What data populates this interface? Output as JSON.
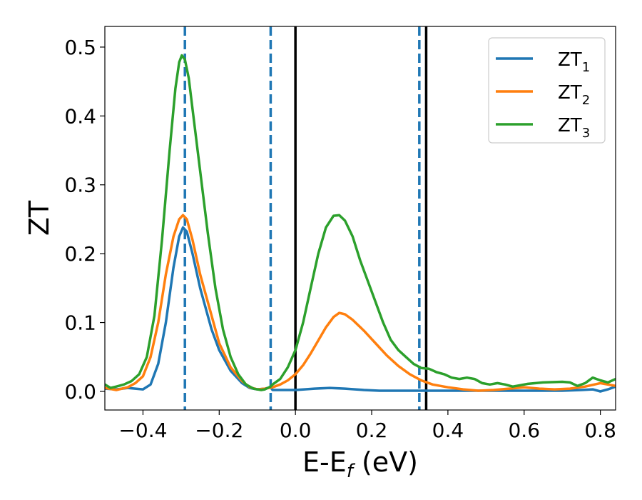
{
  "chart_data": {
    "type": "line",
    "xlabel_main": "E-E",
    "xlabel_sub": "f",
    "xlabel_unit": " (eV)",
    "ylabel": "ZT",
    "xlim": [
      -0.5,
      0.84
    ],
    "ylim": [
      -0.027,
      0.53
    ],
    "xticks": [
      -0.4,
      -0.2,
      0.0,
      0.2,
      0.4,
      0.6,
      0.8
    ],
    "xtick_labels": [
      "−0.4",
      "−0.2",
      "0.0",
      "0.2",
      "0.4",
      "0.6",
      "0.8"
    ],
    "yticks": [
      0.0,
      0.1,
      0.2,
      0.3,
      0.4,
      0.5
    ],
    "ytick_labels": [
      "0.0",
      "0.1",
      "0.2",
      "0.3",
      "0.4",
      "0.5"
    ],
    "grid": false,
    "legend_position": "top-right",
    "series": [
      {
        "name": "ZT",
        "subscript": "1",
        "color": "#1f77b4",
        "points": [
          [
            -0.5,
            0.004
          ],
          [
            -0.47,
            0.003
          ],
          [
            -0.44,
            0.005
          ],
          [
            -0.42,
            0.004
          ],
          [
            -0.4,
            0.003
          ],
          [
            -0.38,
            0.01
          ],
          [
            -0.36,
            0.04
          ],
          [
            -0.34,
            0.1
          ],
          [
            -0.32,
            0.18
          ],
          [
            -0.305,
            0.225
          ],
          [
            -0.295,
            0.238
          ],
          [
            -0.285,
            0.232
          ],
          [
            -0.27,
            0.2
          ],
          [
            -0.25,
            0.15
          ],
          [
            -0.22,
            0.09
          ],
          [
            -0.2,
            0.06
          ],
          [
            -0.17,
            0.03
          ],
          [
            -0.14,
            0.012
          ],
          [
            -0.12,
            0.005
          ],
          [
            -0.1,
            0.003
          ],
          [
            -0.08,
            0.004
          ],
          [
            -0.065,
            0.006
          ],
          [
            -0.06,
            0.002
          ],
          [
            -0.03,
            0.002
          ],
          [
            0.0,
            0.002
          ],
          [
            0.05,
            0.004
          ],
          [
            0.09,
            0.005
          ],
          [
            0.13,
            0.004
          ],
          [
            0.18,
            0.002
          ],
          [
            0.22,
            0.001
          ],
          [
            0.3,
            0.001
          ],
          [
            0.4,
            0.001
          ],
          [
            0.5,
            0.001
          ],
          [
            0.6,
            0.001
          ],
          [
            0.7,
            0.001
          ],
          [
            0.75,
            0.002
          ],
          [
            0.78,
            0.003
          ],
          [
            0.8,
            0.0
          ],
          [
            0.82,
            0.003
          ],
          [
            0.84,
            0.007
          ]
        ]
      },
      {
        "name": "ZT",
        "subscript": "2",
        "color": "#ff7f0e",
        "points": [
          [
            -0.5,
            0.005
          ],
          [
            -0.47,
            0.002
          ],
          [
            -0.44,
            0.006
          ],
          [
            -0.42,
            0.012
          ],
          [
            -0.4,
            0.022
          ],
          [
            -0.38,
            0.05
          ],
          [
            -0.36,
            0.1
          ],
          [
            -0.34,
            0.17
          ],
          [
            -0.32,
            0.225
          ],
          [
            -0.305,
            0.25
          ],
          [
            -0.295,
            0.256
          ],
          [
            -0.285,
            0.25
          ],
          [
            -0.27,
            0.22
          ],
          [
            -0.25,
            0.17
          ],
          [
            -0.22,
            0.11
          ],
          [
            -0.2,
            0.07
          ],
          [
            -0.17,
            0.035
          ],
          [
            -0.14,
            0.015
          ],
          [
            -0.12,
            0.006
          ],
          [
            -0.1,
            0.003
          ],
          [
            -0.08,
            0.004
          ],
          [
            -0.06,
            0.006
          ],
          [
            -0.04,
            0.01
          ],
          [
            -0.02,
            0.016
          ],
          [
            0.0,
            0.025
          ],
          [
            0.02,
            0.038
          ],
          [
            0.04,
            0.055
          ],
          [
            0.06,
            0.074
          ],
          [
            0.08,
            0.093
          ],
          [
            0.1,
            0.108
          ],
          [
            0.115,
            0.114
          ],
          [
            0.13,
            0.112
          ],
          [
            0.15,
            0.104
          ],
          [
            0.18,
            0.088
          ],
          [
            0.21,
            0.07
          ],
          [
            0.24,
            0.052
          ],
          [
            0.27,
            0.037
          ],
          [
            0.3,
            0.025
          ],
          [
            0.33,
            0.016
          ],
          [
            0.36,
            0.01
          ],
          [
            0.4,
            0.006
          ],
          [
            0.44,
            0.003
          ],
          [
            0.48,
            0.001
          ],
          [
            0.52,
            0.002
          ],
          [
            0.56,
            0.004
          ],
          [
            0.6,
            0.006
          ],
          [
            0.64,
            0.004
          ],
          [
            0.68,
            0.003
          ],
          [
            0.72,
            0.004
          ],
          [
            0.76,
            0.007
          ],
          [
            0.8,
            0.012
          ],
          [
            0.84,
            0.008
          ]
        ]
      },
      {
        "name": "ZT",
        "subscript": "3",
        "color": "#2ca02c",
        "points": [
          [
            -0.5,
            0.01
          ],
          [
            -0.485,
            0.005
          ],
          [
            -0.47,
            0.007
          ],
          [
            -0.45,
            0.01
          ],
          [
            -0.43,
            0.015
          ],
          [
            -0.41,
            0.025
          ],
          [
            -0.39,
            0.05
          ],
          [
            -0.37,
            0.11
          ],
          [
            -0.35,
            0.22
          ],
          [
            -0.33,
            0.35
          ],
          [
            -0.315,
            0.44
          ],
          [
            -0.305,
            0.478
          ],
          [
            -0.298,
            0.488
          ],
          [
            -0.29,
            0.482
          ],
          [
            -0.28,
            0.455
          ],
          [
            -0.27,
            0.41
          ],
          [
            -0.25,
            0.32
          ],
          [
            -0.23,
            0.23
          ],
          [
            -0.21,
            0.15
          ],
          [
            -0.19,
            0.09
          ],
          [
            -0.17,
            0.05
          ],
          [
            -0.15,
            0.025
          ],
          [
            -0.13,
            0.01
          ],
          [
            -0.11,
            0.004
          ],
          [
            -0.09,
            0.002
          ],
          [
            -0.08,
            0.003
          ],
          [
            -0.065,
            0.007
          ],
          [
            -0.06,
            0.01
          ],
          [
            -0.04,
            0.018
          ],
          [
            -0.02,
            0.035
          ],
          [
            0.0,
            0.06
          ],
          [
            0.02,
            0.1
          ],
          [
            0.04,
            0.15
          ],
          [
            0.06,
            0.2
          ],
          [
            0.08,
            0.238
          ],
          [
            0.1,
            0.255
          ],
          [
            0.115,
            0.256
          ],
          [
            0.13,
            0.248
          ],
          [
            0.15,
            0.225
          ],
          [
            0.17,
            0.19
          ],
          [
            0.19,
            0.16
          ],
          [
            0.21,
            0.13
          ],
          [
            0.23,
            0.1
          ],
          [
            0.25,
            0.075
          ],
          [
            0.27,
            0.06
          ],
          [
            0.29,
            0.05
          ],
          [
            0.31,
            0.04
          ],
          [
            0.33,
            0.034
          ],
          [
            0.35,
            0.033
          ],
          [
            0.37,
            0.028
          ],
          [
            0.39,
            0.025
          ],
          [
            0.41,
            0.02
          ],
          [
            0.43,
            0.018
          ],
          [
            0.45,
            0.02
          ],
          [
            0.47,
            0.018
          ],
          [
            0.49,
            0.012
          ],
          [
            0.51,
            0.01
          ],
          [
            0.53,
            0.012
          ],
          [
            0.55,
            0.01
          ],
          [
            0.57,
            0.007
          ],
          [
            0.59,
            0.009
          ],
          [
            0.61,
            0.011
          ],
          [
            0.65,
            0.013
          ],
          [
            0.7,
            0.014
          ],
          [
            0.72,
            0.013
          ],
          [
            0.74,
            0.008
          ],
          [
            0.76,
            0.012
          ],
          [
            0.78,
            0.02
          ],
          [
            0.8,
            0.016
          ],
          [
            0.82,
            0.013
          ],
          [
            0.84,
            0.018
          ]
        ]
      }
    ],
    "dashed_vlines": {
      "color": "#1f77b4",
      "x": [
        -0.29,
        -0.065,
        0.325
      ]
    },
    "solid_vlines": {
      "color": "#000000",
      "x": [
        0.0,
        0.343
      ]
    }
  }
}
